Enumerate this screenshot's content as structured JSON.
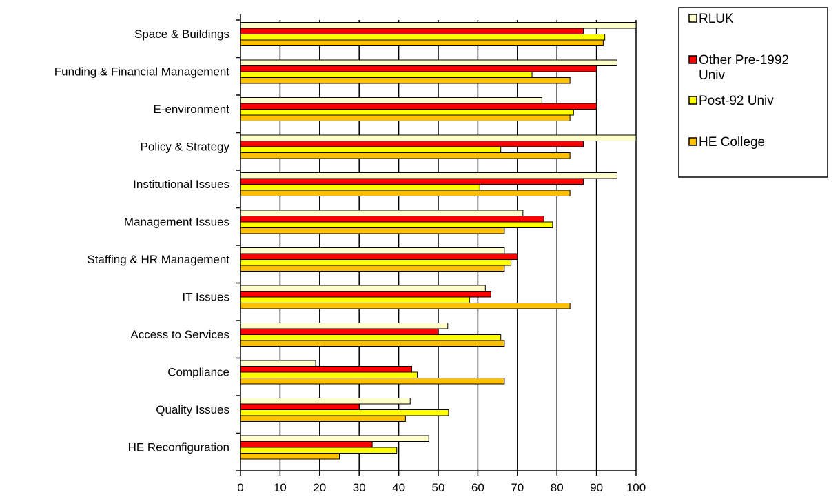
{
  "chart_data": {
    "type": "bar",
    "orientation": "horizontal",
    "categories": [
      "Space & Buildings",
      "Funding & Financial Management",
      "E-environment",
      "Policy & Strategy",
      "Institutional Issues",
      "Management Issues",
      "Staffing & HR Management",
      "IT Issues",
      "Access to Services",
      "Compliance",
      "Quality Issues",
      "HE Reconfiguration"
    ],
    "series": [
      {
        "name": "RLUK",
        "color": "#ffffcc",
        "values": [
          100,
          95.2,
          76.2,
          100,
          95.2,
          71.4,
          66.7,
          61.9,
          52.4,
          19.0,
          42.9,
          47.6
        ]
      },
      {
        "name": "Other Pre-1992 Univ",
        "color": "#ff0000",
        "values": [
          86.7,
          90,
          90,
          86.7,
          86.7,
          76.7,
          70,
          63.3,
          50,
          43.3,
          30,
          33.3
        ]
      },
      {
        "name": "Post-92 Univ",
        "color": "#ffff00",
        "values": [
          92.1,
          73.7,
          84.2,
          65.8,
          60.5,
          78.9,
          68.4,
          57.9,
          65.8,
          44.7,
          52.6,
          39.5
        ]
      },
      {
        "name": "HE College",
        "color": "#ffc000",
        "values": [
          91.7,
          83.3,
          83.3,
          83.3,
          83.3,
          66.7,
          66.7,
          83.3,
          66.7,
          66.7,
          41.7,
          25.0
        ]
      }
    ],
    "xlim": [
      0,
      100
    ],
    "xticks": [
      0,
      10,
      20,
      30,
      40,
      50,
      60,
      70,
      80,
      90,
      100
    ],
    "grid": true,
    "legend_position": "top-right"
  },
  "legend": {
    "entries": [
      {
        "lines": [
          "RLUK"
        ],
        "color": "#ffffcc"
      },
      {
        "lines": [
          "Other Pre-1992",
          "Univ"
        ],
        "color": "#ff0000"
      },
      {
        "lines": [
          "Post-92 Univ"
        ],
        "color": "#ffff00"
      },
      {
        "lines": [
          "HE College"
        ],
        "color": "#ffc000"
      }
    ]
  }
}
